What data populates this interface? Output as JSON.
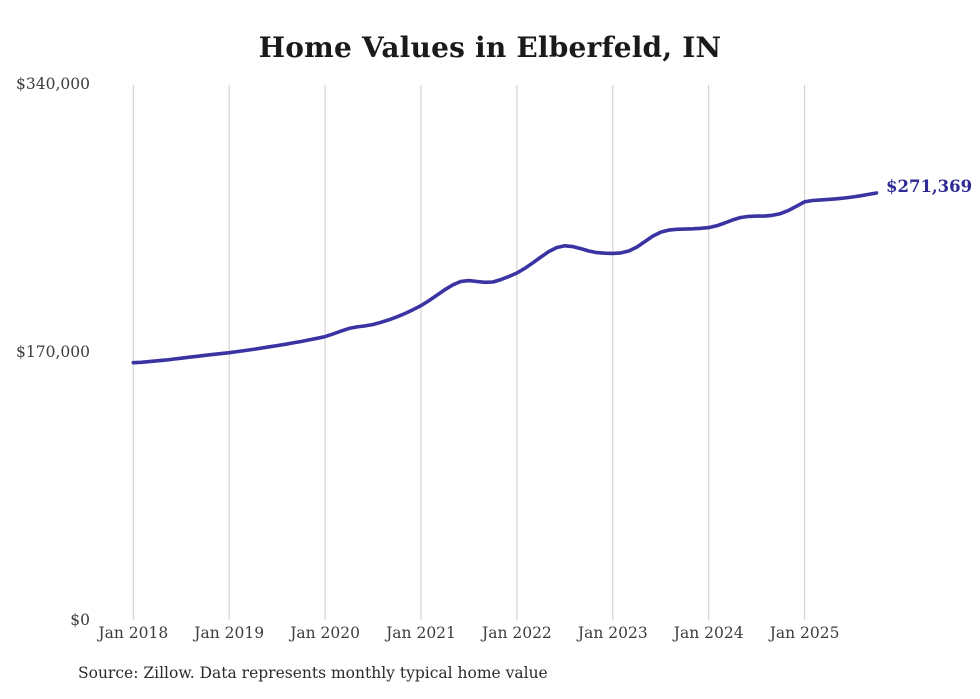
{
  "chart_data": {
    "type": "line",
    "title": "Home Values in Elberfeld, IN",
    "series_name": "Monthly typical home value",
    "frequency": "monthly",
    "x_start": "2018-01",
    "x_end": "2025-10",
    "values": [
      163500,
      163800,
      164200,
      164700,
      165200,
      165800,
      166400,
      167000,
      167600,
      168200,
      168800,
      169300,
      169900,
      170600,
      171300,
      172000,
      172800,
      173600,
      174400,
      175200,
      176100,
      177000,
      178000,
      179000,
      180100,
      181800,
      183600,
      185300,
      186300,
      186900,
      187800,
      189200,
      190800,
      192700,
      194800,
      197200,
      199800,
      203000,
      206500,
      210000,
      213000,
      215200,
      215700,
      215100,
      214600,
      214800,
      216300,
      218300,
      220500,
      223500,
      227000,
      230700,
      234200,
      236700,
      237800,
      237300,
      236000,
      234500,
      233500,
      233100,
      233000,
      233300,
      234500,
      237000,
      240500,
      244000,
      246500,
      247800,
      248300,
      248400,
      248600,
      248900,
      249400,
      250500,
      252300,
      254300,
      255800,
      256500,
      256700,
      256700,
      257200,
      258300,
      260300,
      263000,
      265800,
      266600,
      267000,
      267300,
      267700,
      268200,
      268800,
      269600,
      270500,
      271369
    ],
    "last_value": 271369,
    "end_label": "$271,369",
    "x_tick_labels": [
      "Jan 2018",
      "Jan 2019",
      "Jan 2020",
      "Jan 2021",
      "Jan 2022",
      "Jan 2023",
      "Jan 2024",
      "Jan 2025"
    ],
    "y_tick_labels": [
      "$340,000",
      "$170,000",
      "$0"
    ],
    "y_tick_values": [
      340000,
      170000,
      0
    ],
    "ylim": [
      0,
      340000
    ],
    "grid": "vertical-only",
    "legend": "none",
    "source": "Source: Zillow. Data represents monthly typical home value",
    "colors": {
      "line": "#3a34a3",
      "end_label": "#2f2a93",
      "grid": "#cccccc",
      "title": "#1a1a1a",
      "axis_text": "#3d3d3d",
      "source_text": "#2b2b2b",
      "background": "#ffffff"
    }
  }
}
